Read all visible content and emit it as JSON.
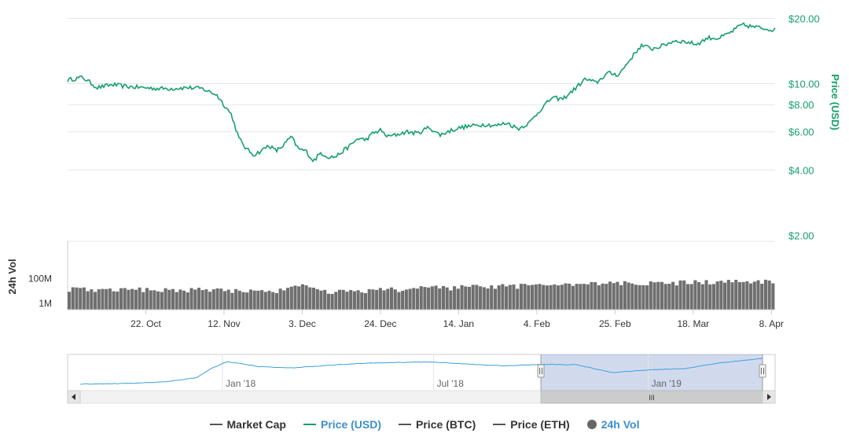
{
  "chart_data": {
    "type": "line",
    "price": {
      "axis_title": "Price (USD)",
      "axis_scale": "log",
      "ylim": [
        1.8,
        22
      ],
      "tick_labels": [
        "$20.00",
        "$10.00",
        "$8.00",
        "$6.00",
        "$4.00",
        "$2.00"
      ],
      "tick_values": [
        20,
        10,
        8,
        6,
        4,
        2
      ],
      "color": "#16a06a",
      "series": [
        {
          "name": "Price (USD)",
          "x": [
            "2018-10-01",
            "2018-10-05",
            "2018-10-09",
            "2018-10-13",
            "2018-10-17",
            "2018-10-21",
            "2018-10-25",
            "2018-10-29",
            "2018-11-02",
            "2018-11-06",
            "2018-11-10",
            "2018-11-14",
            "2018-11-16",
            "2018-11-18",
            "2018-11-20",
            "2018-11-22",
            "2018-11-24",
            "2018-11-26",
            "2018-11-28",
            "2018-11-30",
            "2018-12-02",
            "2018-12-04",
            "2018-12-06",
            "2018-12-08",
            "2018-12-10",
            "2018-12-12",
            "2018-12-14",
            "2018-12-16",
            "2018-12-18",
            "2018-12-20",
            "2018-12-22",
            "2018-12-24",
            "2018-12-26",
            "2018-12-28",
            "2018-12-31",
            "2019-01-03",
            "2019-01-06",
            "2019-01-09",
            "2019-01-12",
            "2019-01-15",
            "2019-01-18",
            "2019-01-21",
            "2019-01-24",
            "2019-01-27",
            "2019-01-30",
            "2019-02-02",
            "2019-02-05",
            "2019-02-08",
            "2019-02-11",
            "2019-02-14",
            "2019-02-17",
            "2019-02-20",
            "2019-02-23",
            "2019-02-26",
            "2019-03-01",
            "2019-03-04",
            "2019-03-07",
            "2019-03-10",
            "2019-03-13",
            "2019-03-16",
            "2019-03-19",
            "2019-03-22",
            "2019-03-25",
            "2019-03-28",
            "2019-03-31",
            "2019-04-03",
            "2019-04-06",
            "2019-04-09"
          ],
          "y": [
            10.4,
            10.7,
            9.6,
            9.9,
            9.7,
            9.6,
            9.5,
            9.5,
            9.6,
            9.5,
            8.9,
            7.2,
            5.6,
            5.0,
            4.7,
            4.9,
            5.2,
            4.9,
            5.2,
            5.7,
            5.0,
            4.9,
            4.4,
            4.8,
            4.6,
            4.6,
            4.9,
            5.2,
            5.6,
            5.5,
            5.9,
            6.1,
            5.7,
            5.8,
            6.0,
            5.9,
            6.3,
            5.8,
            6.1,
            6.3,
            6.4,
            6.5,
            6.4,
            6.6,
            6.2,
            6.6,
            7.6,
            8.6,
            8.5,
            9.4,
            10.5,
            10.1,
            11.2,
            11.0,
            12.9,
            15.0,
            14.5,
            15.0,
            15.8,
            15.6,
            15.2,
            16.3,
            16.2,
            17.2,
            18.7,
            18.3,
            18.0,
            17.7
          ]
        }
      ]
    },
    "volume": {
      "axis_title": "24h Vol",
      "axis_scale": "log",
      "ylim": [
        300000,
        100000000000
      ],
      "tick_labels": [
        "100M",
        "1M"
      ],
      "tick_values": [
        100000000,
        1000000
      ],
      "color": "#6f6f6f",
      "series": [
        {
          "name": "24h Vol",
          "x": [
            "2018-10-01",
            "2018-10-15",
            "2018-10-29",
            "2018-11-12",
            "2018-11-26",
            "2018-12-03",
            "2018-12-10",
            "2018-12-24",
            "2019-01-07",
            "2019-01-21",
            "2019-02-04",
            "2019-02-18",
            "2019-03-04",
            "2019-03-18",
            "2019-04-01",
            "2019-04-09"
          ],
          "y": [
            15000000,
            13000000,
            13000000,
            12000000,
            9000000,
            25000000,
            8000000,
            12000000,
            18000000,
            22000000,
            28000000,
            35000000,
            45000000,
            50000000,
            55000000,
            60000000
          ]
        }
      ]
    },
    "x_tick_labels": [
      "22. Oct",
      "12. Nov",
      "3. Dec",
      "24. Dec",
      "14. Jan",
      "4. Feb",
      "25. Feb",
      "18. Mar",
      "8. Apr"
    ],
    "x_tick_dates": [
      "2018-10-22",
      "2018-11-12",
      "2018-12-03",
      "2018-12-24",
      "2019-01-14",
      "2019-02-04",
      "2019-02-25",
      "2019-03-18",
      "2019-04-08"
    ],
    "navigator": {
      "tick_labels": [
        "Jan '18",
        "Jul '18",
        "Jan '19"
      ],
      "tick_dates": [
        "2018-01-01",
        "2018-07-01",
        "2019-01-01"
      ],
      "x": [
        "2017-09-01",
        "2017-10-15",
        "2017-11-15",
        "2017-12-10",
        "2017-12-22",
        "2018-01-05",
        "2018-01-15",
        "2018-02-01",
        "2018-03-01",
        "2018-04-01",
        "2018-05-01",
        "2018-06-01",
        "2018-07-01",
        "2018-08-01",
        "2018-09-01",
        "2018-10-01",
        "2018-11-01",
        "2018-12-01",
        "2019-01-01",
        "2019-02-01",
        "2019-03-01",
        "2019-04-01",
        "2019-04-09"
      ],
      "y": [
        1.5,
        1.6,
        1.9,
        2.8,
        6.5,
        13,
        11,
        8,
        7,
        9,
        11,
        12,
        12.5,
        10,
        8.6,
        10,
        9.5,
        4.5,
        5.8,
        6.6,
        11,
        16,
        18
      ],
      "selected_range": [
        "2018-10-01",
        "2019-04-09"
      ],
      "scrollbar_handle": "III"
    },
    "legend": {
      "placement": "bottom-center",
      "items": [
        {
          "label": "Market Cap",
          "color": "#555555",
          "shape": "line",
          "active": false
        },
        {
          "label": "Price (USD)",
          "color": "#16a06a",
          "shape": "line",
          "active": true
        },
        {
          "label": "Price (BTC)",
          "color": "#555555",
          "shape": "line",
          "active": false
        },
        {
          "label": "Price (ETH)",
          "color": "#555555",
          "shape": "line",
          "active": false
        },
        {
          "label": "24h Vol",
          "color": "#666666",
          "shape": "dot",
          "active": true
        }
      ]
    }
  }
}
